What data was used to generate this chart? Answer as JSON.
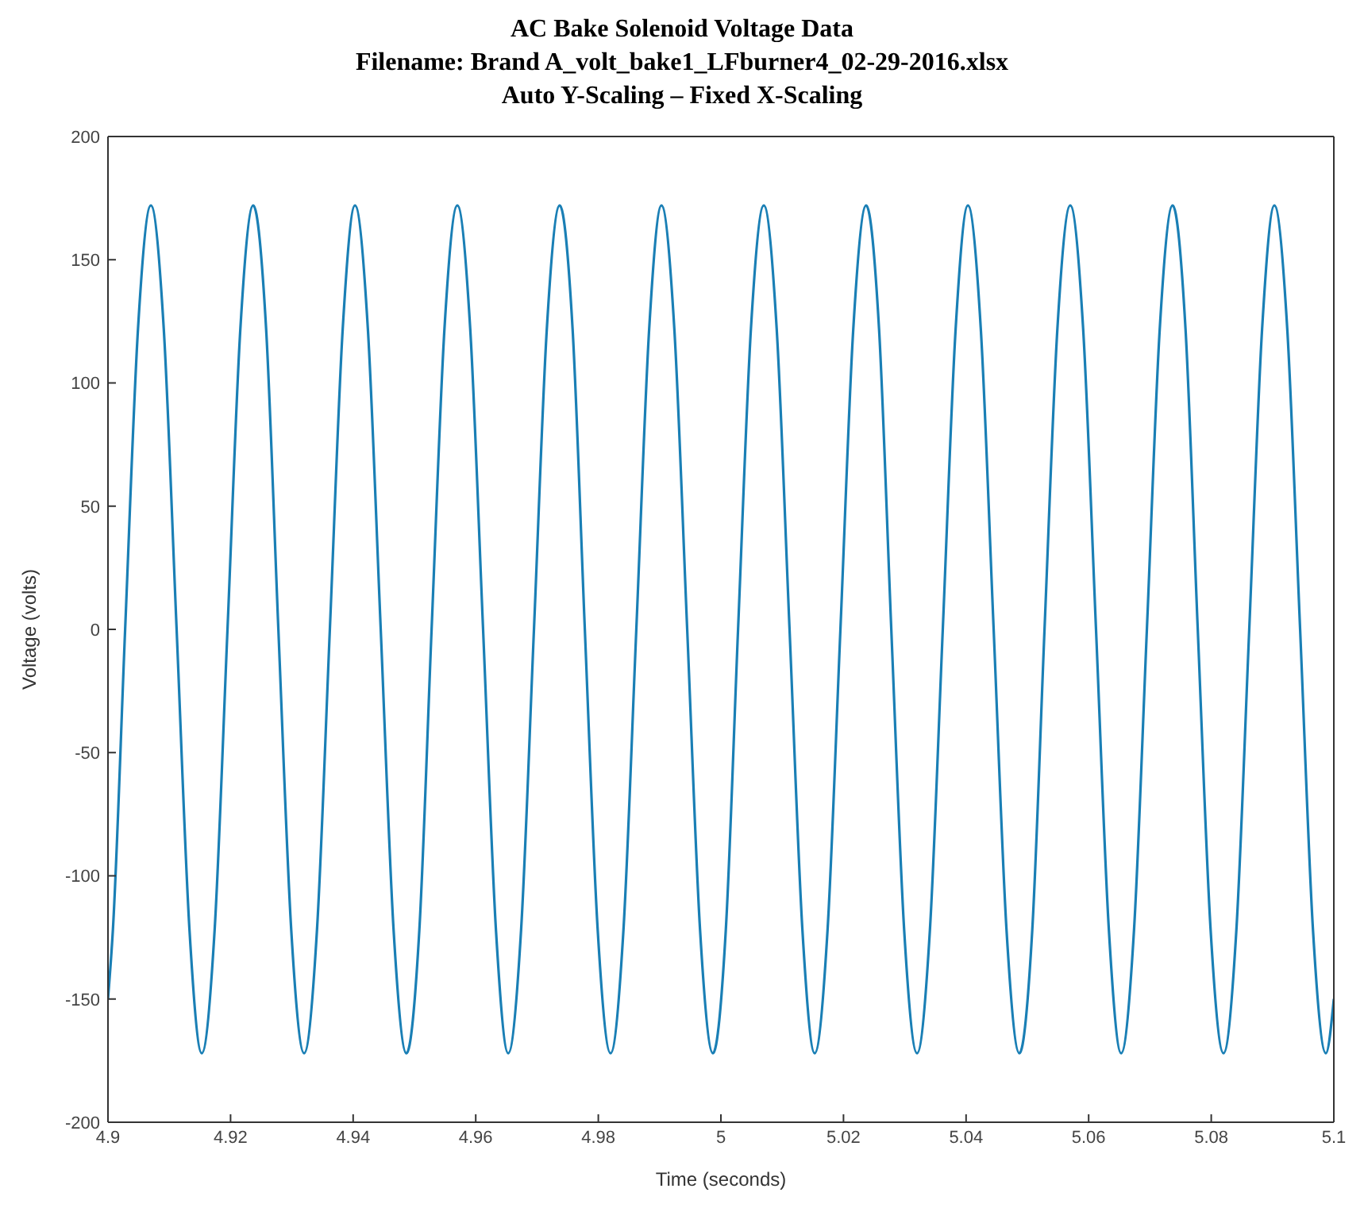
{
  "chart_data": {
    "type": "line",
    "title": "AC Bake Solenoid Voltage Data",
    "subtitle": "Filename: Brand A_volt_bake1_LFburner4_02-29-2016.xlsx\nAuto Y-Scaling – Fixed X-Scaling",
    "xlabel": "Time (seconds)",
    "ylabel": "Voltage (volts)",
    "xlim": [
      4.9,
      5.1
    ],
    "xticks": [
      4.9,
      4.92,
      4.94,
      4.96,
      4.98,
      5,
      5.02,
      5.04,
      5.06,
      5.08,
      5.1
    ],
    "ylim": [
      -200,
      200
    ],
    "yticks": [
      -200,
      -150,
      -100,
      -50,
      0,
      50,
      100,
      150,
      200
    ],
    "legend": false,
    "marker": "none",
    "line_style": "solid",
    "series": [
      {
        "color": "#1a7fb5",
        "x": [
          4.9,
          4.9008,
          4.9028,
          4.9049,
          4.907,
          4.9091,
          4.9112,
          4.9133,
          4.9153,
          4.9174,
          4.9195,
          4.9216,
          4.9237,
          4.9258,
          4.9278,
          4.9299,
          4.932,
          4.9341,
          4.9362,
          4.9383,
          4.9403,
          4.9424,
          4.9445,
          4.9466,
          4.9487,
          4.9508,
          4.9528,
          4.9549,
          4.957,
          4.9591,
          4.9612,
          4.9633,
          4.9653,
          4.9674,
          4.9695,
          4.9716,
          4.9737,
          4.9758,
          4.9778,
          4.9799,
          4.982,
          4.9841,
          4.9862,
          4.9883,
          4.9903,
          4.9924,
          4.9945,
          4.9966,
          4.9987,
          5.0008,
          5.0028,
          5.0049,
          5.007,
          5.0091,
          5.0112,
          5.0133,
          5.0153,
          5.0174,
          5.0195,
          5.0216,
          5.0237,
          5.0258,
          5.0278,
          5.0299,
          5.032,
          5.0341,
          5.0362,
          5.0383,
          5.0403,
          5.0424,
          5.0445,
          5.0466,
          5.0487,
          5.0508,
          5.0528,
          5.0549,
          5.057,
          5.0591,
          5.0612,
          5.0633,
          5.0653,
          5.0674,
          5.0695,
          5.0716,
          5.0737,
          5.0758,
          5.0778,
          5.0799,
          5.082,
          5.0841,
          5.0862,
          5.0883,
          5.0903,
          5.0924,
          5.0945,
          5.0966,
          5.0987,
          5.1
        ],
        "values": [
          -150,
          -122,
          0,
          122,
          172,
          122,
          0,
          -122,
          -172,
          -122,
          0,
          122,
          172,
          122,
          0,
          -122,
          -172,
          -122,
          0,
          122,
          172,
          122,
          0,
          -122,
          -172,
          -122,
          0,
          122,
          172,
          122,
          0,
          -122,
          -172,
          -122,
          0,
          122,
          172,
          122,
          0,
          -122,
          -172,
          -122,
          0,
          122,
          172,
          122,
          0,
          -122,
          -172,
          -122,
          0,
          122,
          172,
          122,
          0,
          -122,
          -172,
          -122,
          0,
          122,
          172,
          122,
          0,
          -122,
          -172,
          -122,
          0,
          122,
          172,
          122,
          0,
          -122,
          -172,
          -122,
          0,
          122,
          172,
          122,
          0,
          -122,
          -172,
          -122,
          0,
          122,
          172,
          122,
          0,
          -122,
          -172,
          -122,
          0,
          122,
          172,
          122,
          0,
          -122,
          -172,
          -150
        ]
      }
    ]
  }
}
